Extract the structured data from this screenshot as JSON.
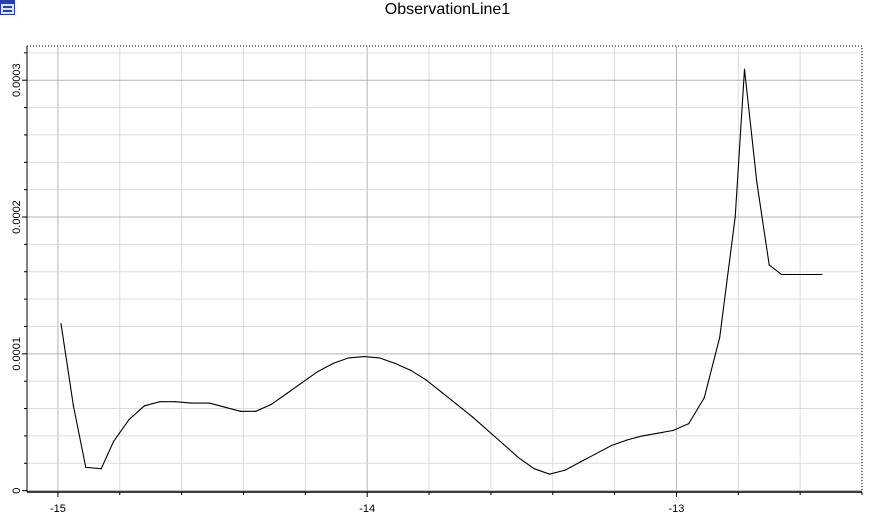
{
  "window": {
    "icon": "window-app-icon"
  },
  "chart_data": {
    "type": "line",
    "title": "ObservationLine1",
    "xlabel": "",
    "ylabel": "",
    "xlim": [
      -15.1,
      -12.4
    ],
    "ylim": [
      -1e-06,
      0.000325
    ],
    "xticks": [
      -15,
      -14,
      -13
    ],
    "xtick_labels": [
      "-15",
      "-14",
      "-13"
    ],
    "yticks": [
      0,
      0.0001,
      0.0002,
      0.0003
    ],
    "ytick_labels": [
      "0",
      "0.0001",
      "0.0002",
      "0.0003"
    ],
    "grid": true,
    "line_color": "#000000",
    "grid_color": "#c8c8c8",
    "series": [
      {
        "x": [
          -14.99,
          -14.95,
          -14.91,
          -14.86,
          -14.82,
          -14.77,
          -14.72,
          -14.67,
          -14.62,
          -14.57,
          -14.51,
          -14.46,
          -14.41,
          -14.36,
          -14.31,
          -14.26,
          -14.21,
          -14.16,
          -14.11,
          -14.06,
          -14.01,
          -13.96,
          -13.91,
          -13.86,
          -13.81,
          -13.76,
          -13.71,
          -13.66,
          -13.61,
          -13.56,
          -13.51,
          -13.46,
          -13.41,
          -13.36,
          -13.31,
          -13.26,
          -13.21,
          -13.16,
          -13.11,
          -13.06,
          -13.01,
          -12.96,
          -12.91,
          -12.86,
          -12.81,
          -12.78,
          -12.74,
          -12.7,
          -12.66,
          -12.63,
          -12.58,
          -12.53
        ],
        "y": [
          0.000122,
          6.2e-05,
          1.7e-05,
          1.6e-05,
          3.6e-05,
          5.2e-05,
          6.2e-05,
          6.5e-05,
          6.5e-05,
          6.4e-05,
          6.4e-05,
          6.1e-05,
          5.8e-05,
          5.8e-05,
          6.3e-05,
          7.1e-05,
          7.9e-05,
          8.7e-05,
          9.3e-05,
          9.7e-05,
          9.8e-05,
          9.7e-05,
          9.3e-05,
          8.8e-05,
          8.1e-05,
          7.2e-05,
          6.3e-05,
          5.4e-05,
          4.4e-05,
          3.4e-05,
          2.4e-05,
          1.6e-05,
          1.2e-05,
          1.5e-05,
          2.1e-05,
          2.7e-05,
          3.3e-05,
          3.7e-05,
          4e-05,
          4.2e-05,
          4.4e-05,
          4.9e-05,
          6.8e-05,
          0.000112,
          0.0002,
          0.000308,
          0.000225,
          0.000165,
          0.000158,
          0.000158,
          0.000158,
          0.000158
        ]
      }
    ]
  }
}
